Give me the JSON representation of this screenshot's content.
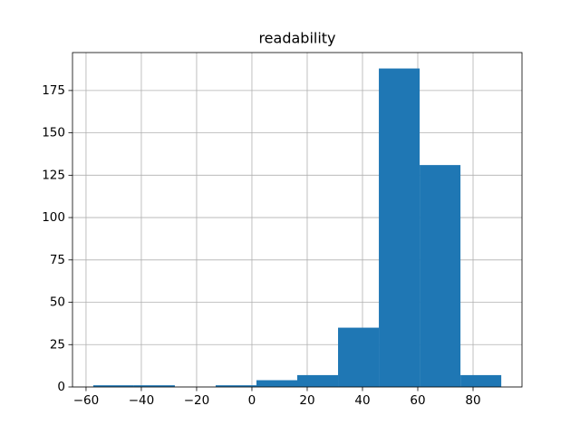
{
  "chart_data": {
    "type": "histogram",
    "title": "readability",
    "bins": [
      -57.4,
      -42.64,
      -27.88,
      -13.12,
      1.64,
      16.4,
      31.16,
      45.92,
      60.68,
      75.44,
      90.2
    ],
    "values": [
      1,
      1,
      0,
      1,
      4,
      7,
      35,
      188,
      131,
      7
    ],
    "color": "#1f77b4",
    "xlim": [
      -64.9,
      97.7
    ],
    "ylim": [
      0,
      197.4
    ],
    "xticks": [
      {
        "value": -60,
        "label": "−60"
      },
      {
        "value": -40,
        "label": "−40"
      },
      {
        "value": -20,
        "label": "−20"
      },
      0,
      20,
      40,
      60,
      80
    ],
    "yticks": [
      0,
      25,
      50,
      75,
      100,
      125,
      150,
      175
    ],
    "grid": true
  }
}
